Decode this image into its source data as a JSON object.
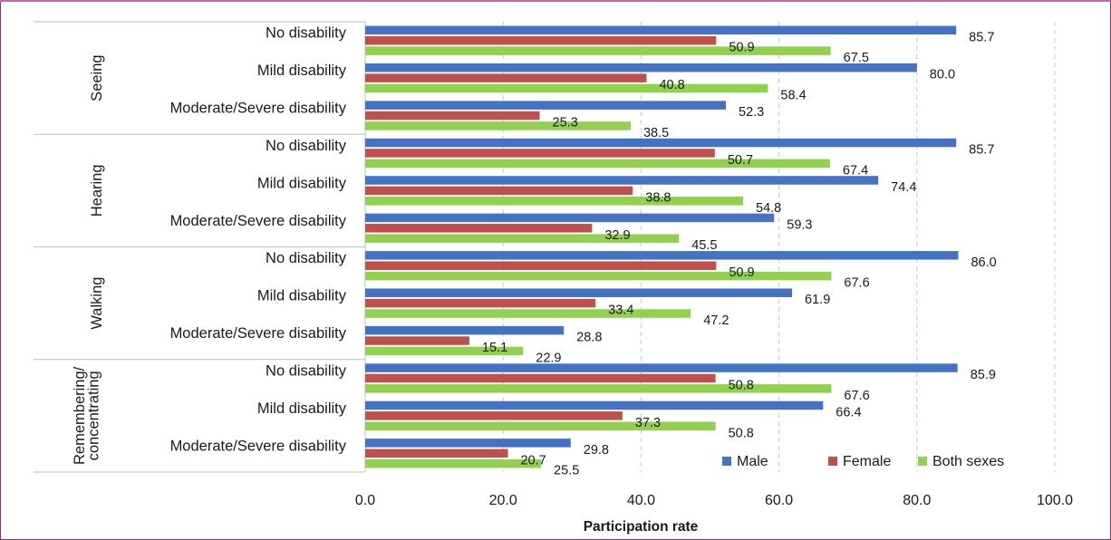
{
  "chart_data": {
    "type": "bar",
    "orientation": "horizontal",
    "xlabel": "Participation rate",
    "xlim": [
      0,
      100
    ],
    "xticks": [
      "0.0",
      "20.0",
      "40.0",
      "60.0",
      "80.0",
      "100.0"
    ],
    "grid": "vertical dashed",
    "legend_position": "bottom-right",
    "groups": [
      {
        "name": "Seeing",
        "categories": [
          {
            "label": "No disability",
            "values": [
              85.7,
              50.9,
              67.5
            ]
          },
          {
            "label": "Mild disability",
            "values": [
              80.0,
              40.8,
              58.4
            ]
          },
          {
            "label": "Moderate/Severe disability",
            "values": [
              52.3,
              25.3,
              38.5
            ]
          }
        ]
      },
      {
        "name": "Hearing",
        "categories": [
          {
            "label": "No disability",
            "values": [
              85.7,
              50.7,
              67.4
            ]
          },
          {
            "label": "Mild disability",
            "values": [
              74.4,
              38.8,
              54.8
            ]
          },
          {
            "label": "Moderate/Severe disability",
            "values": [
              59.3,
              32.9,
              45.5
            ]
          }
        ]
      },
      {
        "name": "Walking",
        "categories": [
          {
            "label": "No disability",
            "values": [
              86.0,
              50.9,
              67.6
            ]
          },
          {
            "label": "Mild disability",
            "values": [
              61.9,
              33.4,
              47.2
            ]
          },
          {
            "label": "Moderate/Severe disability",
            "values": [
              28.8,
              15.1,
              22.9
            ]
          }
        ]
      },
      {
        "name": "Remembering/ concentrating",
        "name_lines": [
          "Remembering/",
          "concentrating"
        ],
        "categories": [
          {
            "label": "No disability",
            "values": [
              85.9,
              50.8,
              67.6
            ]
          },
          {
            "label": "Mild disability",
            "values": [
              66.4,
              37.3,
              50.8
            ]
          },
          {
            "label": "Moderate/Severe disability",
            "values": [
              29.8,
              20.7,
              25.5
            ]
          }
        ]
      }
    ],
    "series": [
      {
        "name": "Male",
        "color": "#4472c4"
      },
      {
        "name": "Female",
        "color": "#c0504d"
      },
      {
        "name": "Both sexes",
        "color": "#92d050"
      }
    ]
  }
}
